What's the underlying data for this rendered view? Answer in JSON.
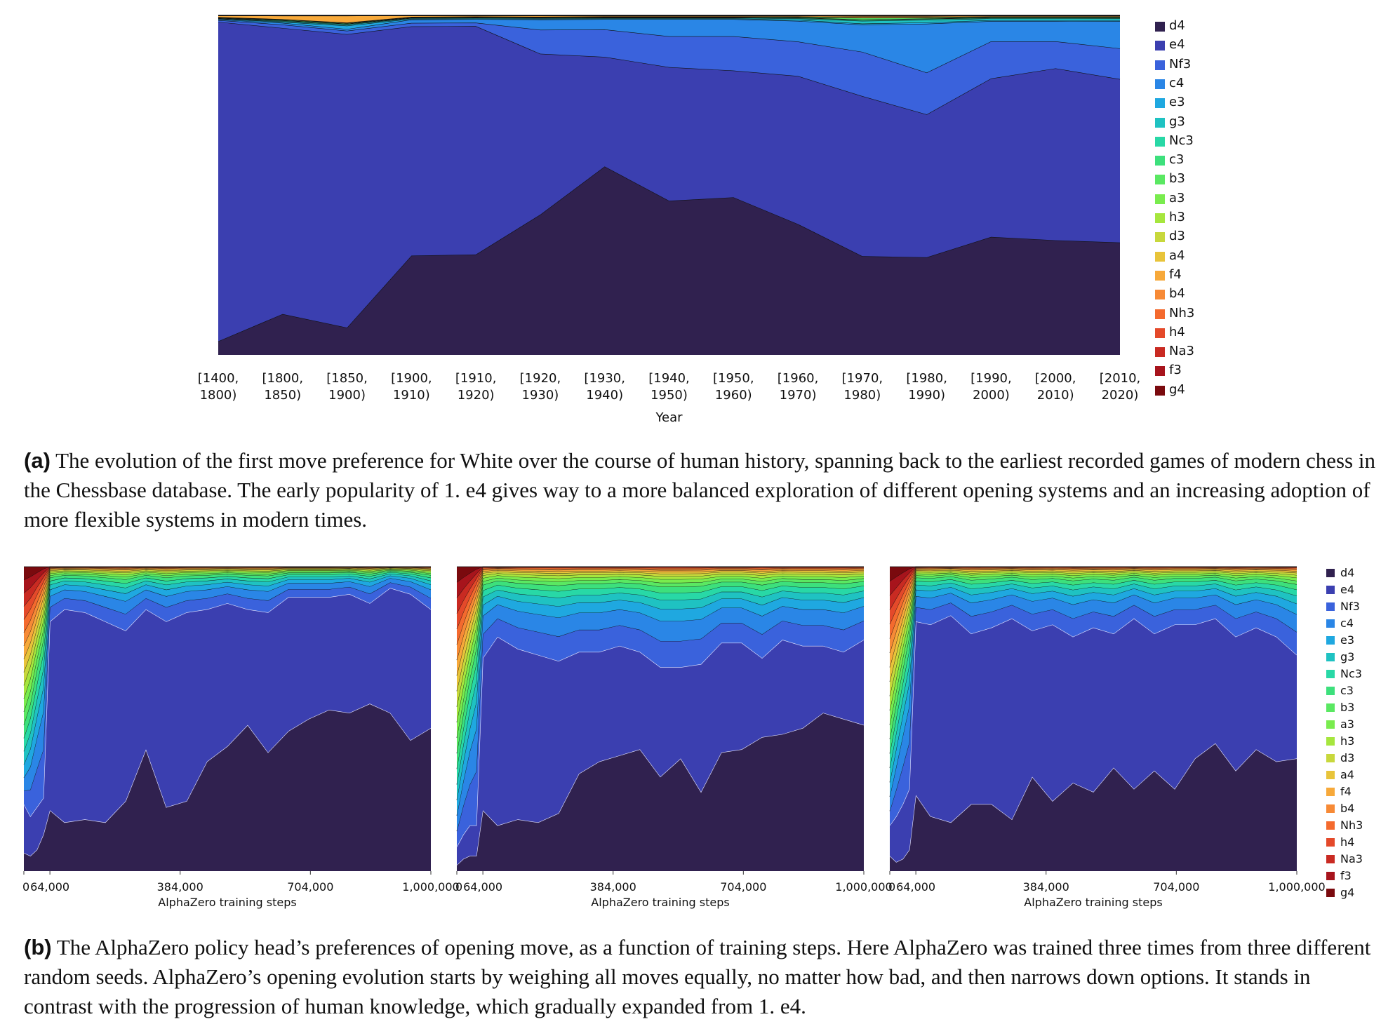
{
  "moves": [
    "d4",
    "e4",
    "Nf3",
    "c4",
    "e3",
    "g3",
    "Nc3",
    "c3",
    "b3",
    "a3",
    "h3",
    "d3",
    "a4",
    "f4",
    "b4",
    "Nh3",
    "h4",
    "Na3",
    "f3",
    "g4"
  ],
  "colors": [
    "#30214f",
    "#3b3fb0",
    "#3a62dc",
    "#2a86e6",
    "#1fa8e0",
    "#1fc2c2",
    "#28d8a6",
    "#3de07c",
    "#5ae862",
    "#79ec4e",
    "#a6e63e",
    "#c8d83c",
    "#e8c43a",
    "#f7a93a",
    "#f78a36",
    "#f46a2e",
    "#e4492a",
    "#c92a22",
    "#a7141c",
    "#7a0a0e"
  ],
  "panel_a": {
    "caption_tag": "(a)",
    "caption_text": "The evolution of the first move preference for White over the course of human history, spanning back to the earliest recorded games of modern chess in the Chessbase database. The early popularity of 1. e4 gives way to a more balanced exploration of different opening systems and an increasing adoption of more flexible systems in modern times."
  },
  "panel_b": {
    "caption_tag": "(b)",
    "caption_text": "The AlphaZero policy head’s preferences of opening move, as a function of training steps. Here AlphaZero was trained three times from three different random seeds. AlphaZero’s opening evolution starts by weighing all moves equally, no matter how bad, and then narrows down options. It stands in contrast with the progression of human knowledge, which gradually expanded from 1. e4."
  },
  "chart_data": [
    {
      "type": "area",
      "stacked": true,
      "normalized": true,
      "xlabel": "Year",
      "categories": [
        "[1400,\n1800)",
        "[1800,\n1850)",
        "[1850,\n1900)",
        "[1900,\n1910)",
        "[1910,\n1920)",
        "[1920,\n1930)",
        "[1930,\n1940)",
        "[1940,\n1950)",
        "[1950,\n1960)",
        "[1960,\n1970)",
        "[1970,\n1980)",
        "[1980,\n1990)",
        "[1990,\n2000)",
        "[2000,\n2010)",
        "[2010,\n2020)"
      ],
      "ylim": [
        0,
        1
      ],
      "legend": "right",
      "series": [
        {
          "name": "d4",
          "values": [
            0.04,
            0.12,
            0.08,
            0.29,
            0.29,
            0.41,
            0.55,
            0.45,
            0.46,
            0.38,
            0.29,
            0.28,
            0.35,
            0.34,
            0.33
          ]
        },
        {
          "name": "e4",
          "values": [
            0.94,
            0.84,
            0.86,
            0.67,
            0.66,
            0.47,
            0.32,
            0.39,
            0.37,
            0.43,
            0.47,
            0.41,
            0.47,
            0.51,
            0.48
          ]
        },
        {
          "name": "Nf3",
          "values": [
            0.005,
            0.01,
            0.01,
            0.01,
            0.01,
            0.07,
            0.08,
            0.09,
            0.1,
            0.1,
            0.13,
            0.12,
            0.11,
            0.08,
            0.09
          ]
        },
        {
          "name": "c4",
          "values": [
            0.002,
            0.005,
            0.005,
            0.01,
            0.01,
            0.03,
            0.03,
            0.05,
            0.05,
            0.06,
            0.08,
            0.14,
            0.06,
            0.06,
            0.08
          ]
        },
        {
          "name": "e3",
          "values": [
            0.002,
            0.003,
            0.01,
            0.002,
            0.002,
            0.002,
            0.002,
            0.002,
            0.002,
            0.003,
            0.003,
            0.004,
            0.003,
            0.003,
            0.003
          ]
        },
        {
          "name": "g3",
          "values": [
            0.001,
            0.002,
            0.003,
            0.002,
            0.002,
            0.002,
            0.002,
            0.002,
            0.002,
            0.004,
            0.008,
            0.007,
            0.005,
            0.005,
            0.005
          ]
        },
        {
          "name": "Nc3",
          "values": [
            0.001,
            0.002,
            0.002,
            0.001,
            0.001,
            0.001,
            0.001,
            0.001,
            0.001,
            0.002,
            0.003,
            0.003,
            0.002,
            0.002,
            0.002
          ]
        },
        {
          "name": "c3",
          "values": [
            0.001,
            0.001,
            0.001,
            0.001,
            0.001,
            0.001,
            0.001,
            0.001,
            0.001,
            0.001,
            0.001,
            0.001,
            0.001,
            0.001,
            0.001
          ]
        },
        {
          "name": "b3",
          "values": [
            0.001,
            0.002,
            0.002,
            0.001,
            0.001,
            0.001,
            0.001,
            0.001,
            0.001,
            0.002,
            0.005,
            0.003,
            0.002,
            0.002,
            0.002
          ]
        },
        {
          "name": "a3",
          "values": [
            0.0,
            0.0,
            0.0,
            0.0,
            0.0,
            0.0,
            0.0,
            0.0,
            0.0,
            0.0,
            0.0,
            0.0,
            0.0,
            0.0,
            0.0
          ]
        },
        {
          "name": "h3",
          "values": [
            0.0,
            0.0,
            0.0,
            0.0,
            0.0,
            0.0,
            0.0,
            0.0,
            0.0,
            0.0,
            0.0,
            0.0,
            0.0,
            0.0,
            0.0
          ]
        },
        {
          "name": "d3",
          "values": [
            0.001,
            0.001,
            0.001,
            0.001,
            0.001,
            0.001,
            0.001,
            0.001,
            0.001,
            0.001,
            0.001,
            0.001,
            0.001,
            0.001,
            0.001
          ]
        },
        {
          "name": "a4",
          "values": [
            0.0,
            0.0,
            0.0,
            0.0,
            0.0,
            0.0,
            0.0,
            0.0,
            0.0,
            0.0,
            0.0,
            0.0,
            0.0,
            0.0,
            0.0
          ]
        },
        {
          "name": "f4",
          "values": [
            0.005,
            0.01,
            0.02,
            0.004,
            0.003,
            0.003,
            0.002,
            0.002,
            0.002,
            0.002,
            0.004,
            0.003,
            0.002,
            0.002,
            0.002
          ]
        },
        {
          "name": "b4",
          "values": [
            0.0,
            0.001,
            0.001,
            0.0,
            0.0,
            0.001,
            0.001,
            0.001,
            0.001,
            0.001,
            0.002,
            0.002,
            0.001,
            0.001,
            0.001
          ]
        },
        {
          "name": "Nh3",
          "values": [
            0.0,
            0.0,
            0.0,
            0.0,
            0.0,
            0.0,
            0.0,
            0.0,
            0.0,
            0.0,
            0.0,
            0.0,
            0.0,
            0.0,
            0.0
          ]
        },
        {
          "name": "h4",
          "values": [
            0.0,
            0.0,
            0.0,
            0.0,
            0.0,
            0.0,
            0.0,
            0.0,
            0.0,
            0.0,
            0.0,
            0.0,
            0.0,
            0.0,
            0.0
          ]
        },
        {
          "name": "Na3",
          "values": [
            0.0,
            0.0,
            0.0,
            0.0,
            0.0,
            0.0,
            0.0,
            0.0,
            0.0,
            0.0,
            0.0,
            0.0,
            0.0,
            0.0,
            0.0
          ]
        },
        {
          "name": "f3",
          "values": [
            0.0,
            0.0,
            0.0,
            0.0,
            0.0,
            0.0,
            0.0,
            0.0,
            0.0,
            0.0,
            0.0,
            0.0,
            0.0,
            0.0,
            0.0
          ]
        },
        {
          "name": "g4",
          "values": [
            0.0,
            0.0,
            0.0,
            0.0,
            0.0,
            0.0,
            0.0,
            0.0,
            0.0,
            0.0,
            0.0,
            0.0,
            0.0,
            0.0,
            0.0
          ]
        }
      ]
    },
    {
      "type": "area",
      "stacked": true,
      "normalized": true,
      "xlabel": "AlphaZero training steps",
      "xticks": [
        "0",
        "64,000",
        "384,000",
        "704,000",
        "1,000,000"
      ],
      "xlim": [
        0,
        1000000
      ],
      "ylim": [
        0,
        1
      ],
      "legend": "none",
      "x": [
        0,
        16000,
        32000,
        48000,
        64000,
        100000,
        150000,
        200000,
        250000,
        300000,
        350000,
        400000,
        450000,
        500000,
        550000,
        600000,
        650000,
        700000,
        750000,
        800000,
        850000,
        900000,
        950000,
        1000000
      ],
      "d4": [
        0.06,
        0.05,
        0.07,
        0.12,
        0.2,
        0.16,
        0.17,
        0.16,
        0.23,
        0.4,
        0.21,
        0.23,
        0.36,
        0.41,
        0.48,
        0.39,
        0.46,
        0.5,
        0.53,
        0.52,
        0.55,
        0.52,
        0.43,
        0.47
      ],
      "e4": [
        0.16,
        0.13,
        0.14,
        0.12,
        0.62,
        0.7,
        0.68,
        0.66,
        0.56,
        0.46,
        0.61,
        0.62,
        0.5,
        0.47,
        0.38,
        0.46,
        0.44,
        0.4,
        0.37,
        0.39,
        0.33,
        0.41,
        0.48,
        0.39
      ],
      "others": [
        0.78,
        0.82,
        0.79,
        0.76,
        0.18,
        0.14,
        0.15,
        0.18,
        0.21,
        0.14,
        0.18,
        0.15,
        0.14,
        0.12,
        0.14,
        0.15,
        0.1,
        0.1,
        0.1,
        0.09,
        0.12,
        0.07,
        0.09,
        0.14
      ]
    },
    {
      "type": "area",
      "stacked": true,
      "normalized": true,
      "xlabel": "AlphaZero training steps",
      "xticks": [
        "0",
        "64,000",
        "384,000",
        "704,000",
        "1,000,000"
      ],
      "xlim": [
        0,
        1000000
      ],
      "ylim": [
        0,
        1
      ],
      "legend": "none",
      "x": [
        0,
        16000,
        32000,
        48000,
        64000,
        100000,
        150000,
        200000,
        250000,
        300000,
        350000,
        400000,
        450000,
        500000,
        550000,
        600000,
        650000,
        700000,
        750000,
        800000,
        850000,
        900000,
        950000,
        1000000
      ],
      "d4": [
        0.02,
        0.04,
        0.05,
        0.05,
        0.2,
        0.15,
        0.17,
        0.16,
        0.19,
        0.32,
        0.36,
        0.38,
        0.4,
        0.31,
        0.37,
        0.26,
        0.39,
        0.4,
        0.44,
        0.45,
        0.47,
        0.52,
        0.5,
        0.48
      ],
      "e4": [
        0.06,
        0.08,
        0.1,
        0.1,
        0.5,
        0.62,
        0.56,
        0.55,
        0.5,
        0.4,
        0.36,
        0.36,
        0.32,
        0.36,
        0.3,
        0.42,
        0.36,
        0.35,
        0.26,
        0.31,
        0.27,
        0.22,
        0.22,
        0.28
      ],
      "others": [
        0.92,
        0.88,
        0.85,
        0.85,
        0.3,
        0.23,
        0.27,
        0.29,
        0.31,
        0.28,
        0.28,
        0.26,
        0.28,
        0.33,
        0.33,
        0.32,
        0.25,
        0.25,
        0.3,
        0.24,
        0.26,
        0.26,
        0.28,
        0.24
      ]
    },
    {
      "type": "area",
      "stacked": true,
      "normalized": true,
      "xlabel": "AlphaZero training steps",
      "xticks": [
        "0",
        "64,000",
        "384,000",
        "704,000",
        "1,000,000"
      ],
      "xlim": [
        0,
        1000000
      ],
      "ylim": [
        0,
        1
      ],
      "legend": "right",
      "x": [
        0,
        16000,
        32000,
        48000,
        64000,
        100000,
        150000,
        200000,
        250000,
        300000,
        350000,
        400000,
        450000,
        500000,
        550000,
        600000,
        650000,
        700000,
        750000,
        800000,
        850000,
        900000,
        950000,
        1000000
      ],
      "d4": [
        0.05,
        0.03,
        0.04,
        0.07,
        0.25,
        0.18,
        0.16,
        0.22,
        0.22,
        0.17,
        0.31,
        0.23,
        0.29,
        0.26,
        0.34,
        0.27,
        0.33,
        0.27,
        0.37,
        0.42,
        0.33,
        0.4,
        0.36,
        0.37
      ],
      "e4": [
        0.1,
        0.15,
        0.18,
        0.2,
        0.57,
        0.63,
        0.68,
        0.56,
        0.58,
        0.66,
        0.48,
        0.58,
        0.48,
        0.54,
        0.44,
        0.56,
        0.45,
        0.54,
        0.44,
        0.41,
        0.44,
        0.4,
        0.41,
        0.34
      ],
      "others": [
        0.85,
        0.82,
        0.78,
        0.73,
        0.18,
        0.19,
        0.16,
        0.22,
        0.2,
        0.17,
        0.21,
        0.19,
        0.23,
        0.2,
        0.22,
        0.17,
        0.22,
        0.19,
        0.19,
        0.17,
        0.23,
        0.2,
        0.23,
        0.29
      ]
    }
  ]
}
